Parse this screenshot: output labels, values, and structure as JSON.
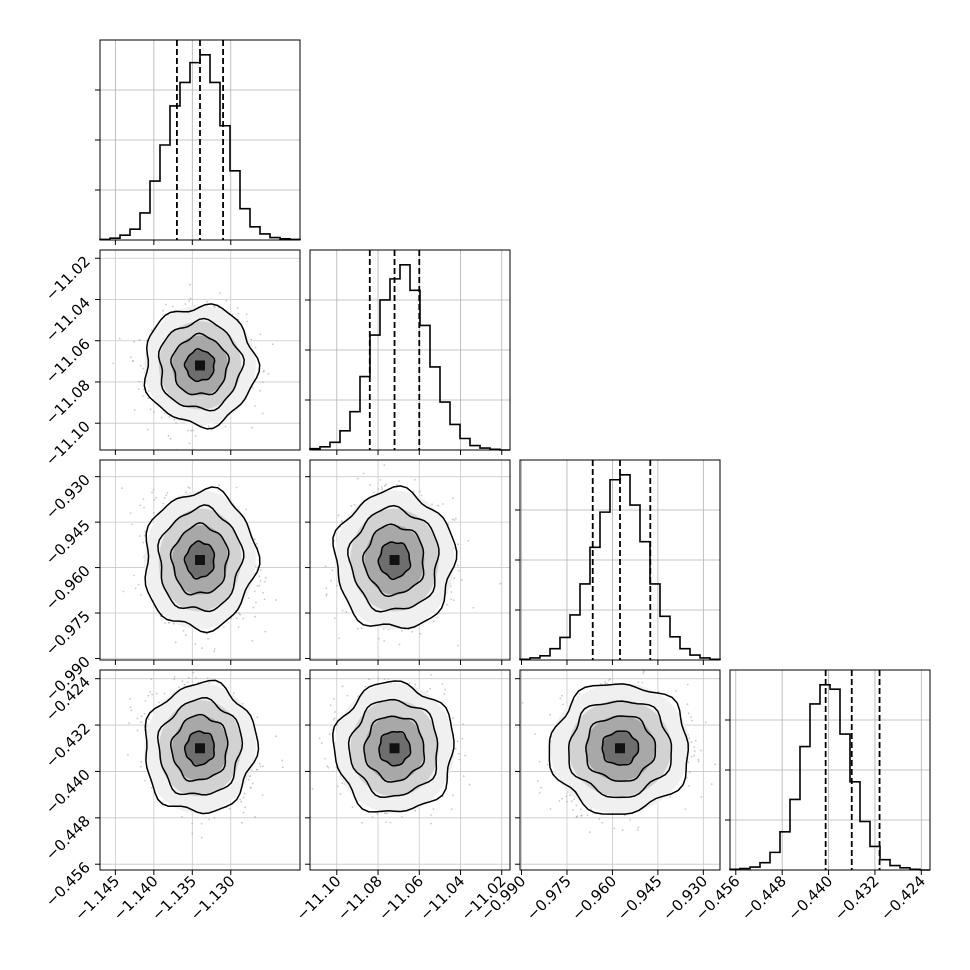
{
  "chart_data": {
    "type": "corner",
    "parameters": [
      {
        "index": 0,
        "range": [
          -1.147,
          -1.121
        ],
        "ticks": [
          -1.145,
          -1.14,
          -1.135,
          -1.13
        ],
        "tick_labels": [
          "−1.145",
          "−1.140",
          "−1.135",
          "−1.130"
        ],
        "quantiles": [
          -1.137,
          -1.134,
          -1.131
        ],
        "mode": -1.1345
      },
      {
        "index": 1,
        "range": [
          -11.113,
          -11.016
        ],
        "ticks": [
          -11.1,
          -11.08,
          -11.06,
          -11.04,
          -11.02
        ],
        "tick_labels": [
          "−11.10",
          "−11.08",
          "−11.06",
          "−11.04",
          "−11.02"
        ],
        "quantiles": [
          -11.084,
          -11.072,
          -11.06
        ],
        "mode": -11.072
      },
      {
        "index": 2,
        "range": [
          -0.9905,
          -0.9245
        ],
        "ticks": [
          -0.99,
          -0.975,
          -0.96,
          -0.945,
          -0.93
        ],
        "tick_labels": [
          "−0.990",
          "−0.975",
          "−0.960",
          "−0.945",
          "−0.930"
        ],
        "quantiles": [
          -0.9665,
          -0.9575,
          -0.9475
        ],
        "mode": -0.9585
      },
      {
        "index": 3,
        "range": [
          -0.457,
          -0.4225
        ],
        "ticks": [
          -0.456,
          -0.448,
          -0.44,
          -0.432,
          -0.424
        ],
        "tick_labels": [
          "−0.456",
          "−0.448",
          "−0.440",
          "−0.432",
          "−0.424"
        ],
        "quantiles": [
          -0.4405,
          -0.436,
          -0.4312
        ],
        "mode": -0.436
      }
    ],
    "histograms": [
      {
        "param": 0,
        "bins": 20,
        "heights": [
          1,
          3,
          8,
          18,
          45,
          98,
          158,
          223,
          262,
          295,
          308,
          262,
          190,
          115,
          52,
          22,
          10,
          4,
          2,
          1
        ]
      },
      {
        "param": 1,
        "bins": 20,
        "heights": [
          2,
          5,
          12,
          30,
          60,
          115,
          180,
          235,
          268,
          290,
          250,
          195,
          130,
          75,
          40,
          18,
          7,
          3,
          1,
          0
        ]
      },
      {
        "param": 2,
        "bins": 20,
        "heights": [
          1,
          3,
          6,
          16,
          32,
          64,
          108,
          160,
          210,
          256,
          263,
          220,
          168,
          108,
          62,
          33,
          16,
          7,
          3,
          1
        ]
      },
      {
        "param": 3,
        "bins": 20,
        "heights": [
          1,
          2,
          4,
          10,
          24,
          52,
          96,
          168,
          226,
          252,
          246,
          185,
          120,
          66,
          32,
          14,
          6,
          3,
          1,
          0
        ]
      }
    ],
    "correlations": {
      "1_0": 0.02,
      "2_0": -0.12,
      "2_1": 0.02,
      "3_0": -0.22,
      "3_1": 0.0,
      "3_2": 0.12
    },
    "contour_levels": 4,
    "grid": true
  }
}
